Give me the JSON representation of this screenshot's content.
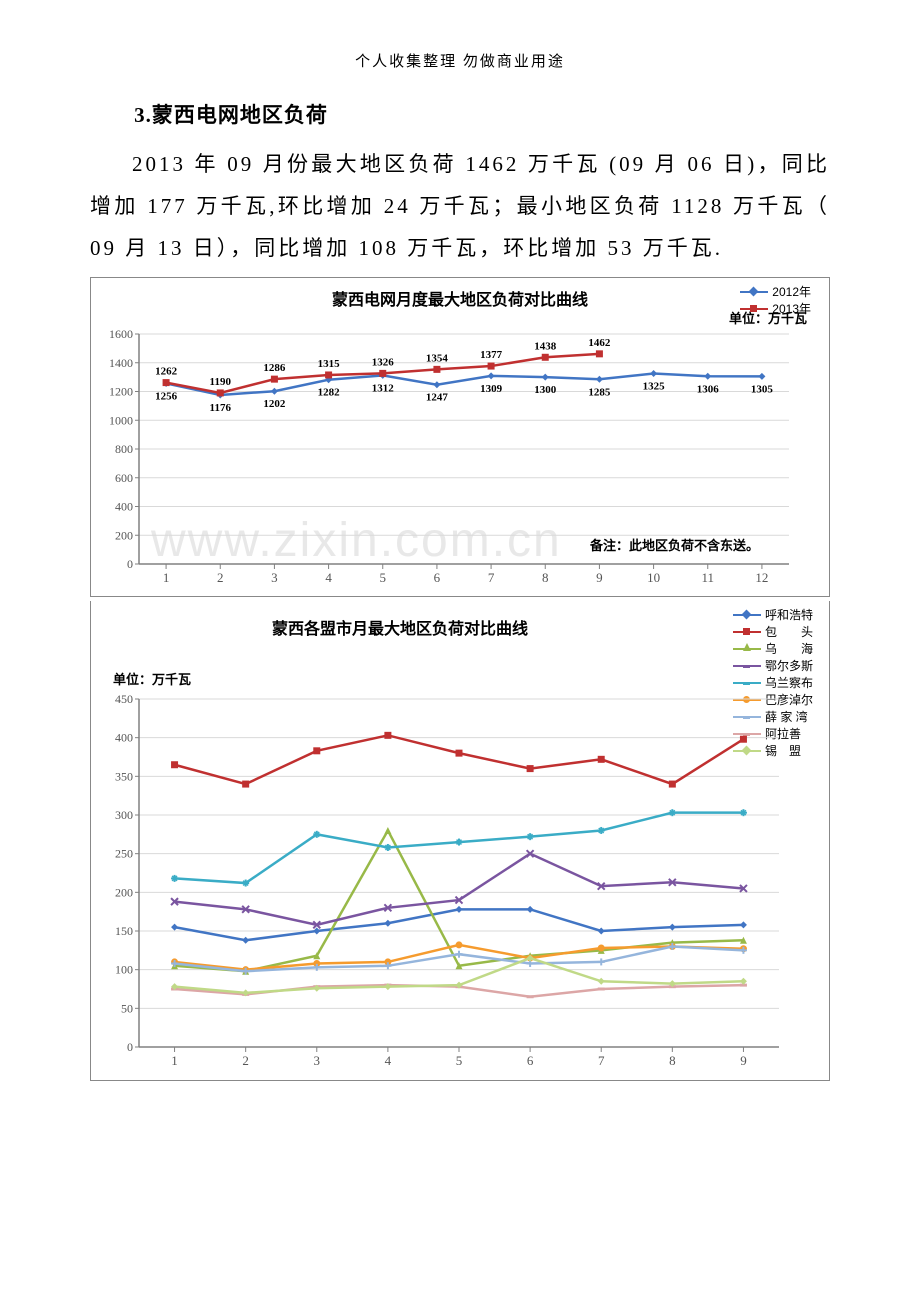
{
  "header_note": "个人收集整理 勿做商业用途",
  "section_title": "3.蒙西电网地区负荷",
  "paragraph": "2013 年 09 月份最大地区负荷 1462 万千瓦 (09 月 06 日)，同比增加 177 万千瓦,环比增加 24 万千瓦；最小地区负荷 1128 万千瓦（ 09 月 13 日），同比增加 108 万千瓦，环比增加 53 万千瓦.",
  "watermark": "www.zixin.com.cn",
  "chart1": {
    "title": "蒙西电网月度最大地区负荷对比曲线",
    "unit": "单位：万千瓦",
    "note": "备注：此地区负荷不含东送。",
    "legend": [
      {
        "label": "2012年",
        "color": "#4175c4",
        "marker": "diamond"
      },
      {
        "label": "2013年",
        "color": "#c03030",
        "marker": "square"
      }
    ],
    "x_categories": [
      "1",
      "2",
      "3",
      "4",
      "5",
      "6",
      "7",
      "8",
      "9",
      "10",
      "11",
      "12"
    ],
    "ylim": [
      0,
      1600
    ],
    "ytick_step": 200,
    "series": [
      {
        "name": "2012年",
        "color": "#4175c4",
        "marker": "diamond",
        "values": [
          1256,
          1176,
          1202,
          1282,
          1312,
          1247,
          1309,
          1300,
          1285,
          1325,
          1306,
          1305
        ],
        "label_pos": "below"
      },
      {
        "name": "2013年",
        "color": "#c03030",
        "marker": "square",
        "values": [
          1262,
          1190,
          1286,
          1315,
          1326,
          1354,
          1377,
          1438,
          1462,
          null,
          null,
          null
        ],
        "label_pos": "above"
      }
    ],
    "grid_color": "#d9d9d9",
    "axis_color": "#808080",
    "line_width": 2.5,
    "marker_size": 7,
    "label_fontsize": 11
  },
  "chart2": {
    "title": "蒙西各盟市月最大地区负荷对比曲线",
    "unit": "单位：万千瓦",
    "legend": [
      {
        "label": "呼和浩特",
        "color": "#4175c4",
        "marker": "diamond"
      },
      {
        "label": "包　　头",
        "color": "#c03030",
        "marker": "square"
      },
      {
        "label": "乌　　海",
        "color": "#98b948",
        "marker": "triangle"
      },
      {
        "label": "鄂尔多斯",
        "color": "#7a55a0",
        "marker": "x"
      },
      {
        "label": "乌兰察布",
        "color": "#3aacc6",
        "marker": "star"
      },
      {
        "label": "巴彦淖尔",
        "color": "#f59b2e",
        "marker": "circle"
      },
      {
        "label": "薛 家 湾",
        "color": "#95b5dc",
        "marker": "plus"
      },
      {
        "label": "阿拉善",
        "color": "#dca6a6",
        "marker": "dash"
      },
      {
        "label": "锡　盟",
        "color": "#c0d987",
        "marker": "diamond"
      }
    ],
    "x_categories": [
      "1",
      "2",
      "3",
      "4",
      "5",
      "6",
      "7",
      "8",
      "9"
    ],
    "ylim": [
      0,
      450
    ],
    "ytick_step": 50,
    "series": [
      {
        "name": "呼和浩特",
        "color": "#4175c4",
        "marker": "diamond",
        "values": [
          155,
          138,
          150,
          160,
          178,
          178,
          150,
          155,
          158
        ]
      },
      {
        "name": "包头",
        "color": "#c03030",
        "marker": "square",
        "values": [
          365,
          340,
          383,
          403,
          380,
          360,
          372,
          340,
          398
        ]
      },
      {
        "name": "乌海",
        "color": "#98b948",
        "marker": "triangle",
        "values": [
          105,
          98,
          118,
          280,
          105,
          118,
          125,
          135,
          138
        ]
      },
      {
        "name": "鄂尔多斯",
        "color": "#7a55a0",
        "marker": "x",
        "values": [
          188,
          178,
          158,
          180,
          190,
          250,
          208,
          213,
          205
        ]
      },
      {
        "name": "乌兰察布",
        "color": "#3aacc6",
        "marker": "star",
        "values": [
          218,
          212,
          275,
          258,
          265,
          272,
          280,
          303,
          303
        ]
      },
      {
        "name": "巴彦淖尔",
        "color": "#f59b2e",
        "marker": "circle",
        "values": [
          110,
          100,
          108,
          110,
          132,
          115,
          128,
          130,
          127
        ]
      },
      {
        "name": "薛家湾",
        "color": "#95b5dc",
        "marker": "plus",
        "values": [
          108,
          98,
          103,
          105,
          120,
          108,
          110,
          130,
          125
        ]
      },
      {
        "name": "阿拉善",
        "color": "#dca6a6",
        "marker": "dash",
        "values": [
          75,
          68,
          78,
          80,
          78,
          65,
          75,
          78,
          80
        ]
      },
      {
        "name": "锡盟",
        "color": "#c0d987",
        "marker": "diamond",
        "values": [
          78,
          70,
          76,
          78,
          80,
          115,
          85,
          82,
          85
        ]
      }
    ],
    "grid_color": "#d9d9d9",
    "axis_color": "#808080",
    "line_width": 2.5,
    "marker_size": 7,
    "label_fontsize": 13
  }
}
